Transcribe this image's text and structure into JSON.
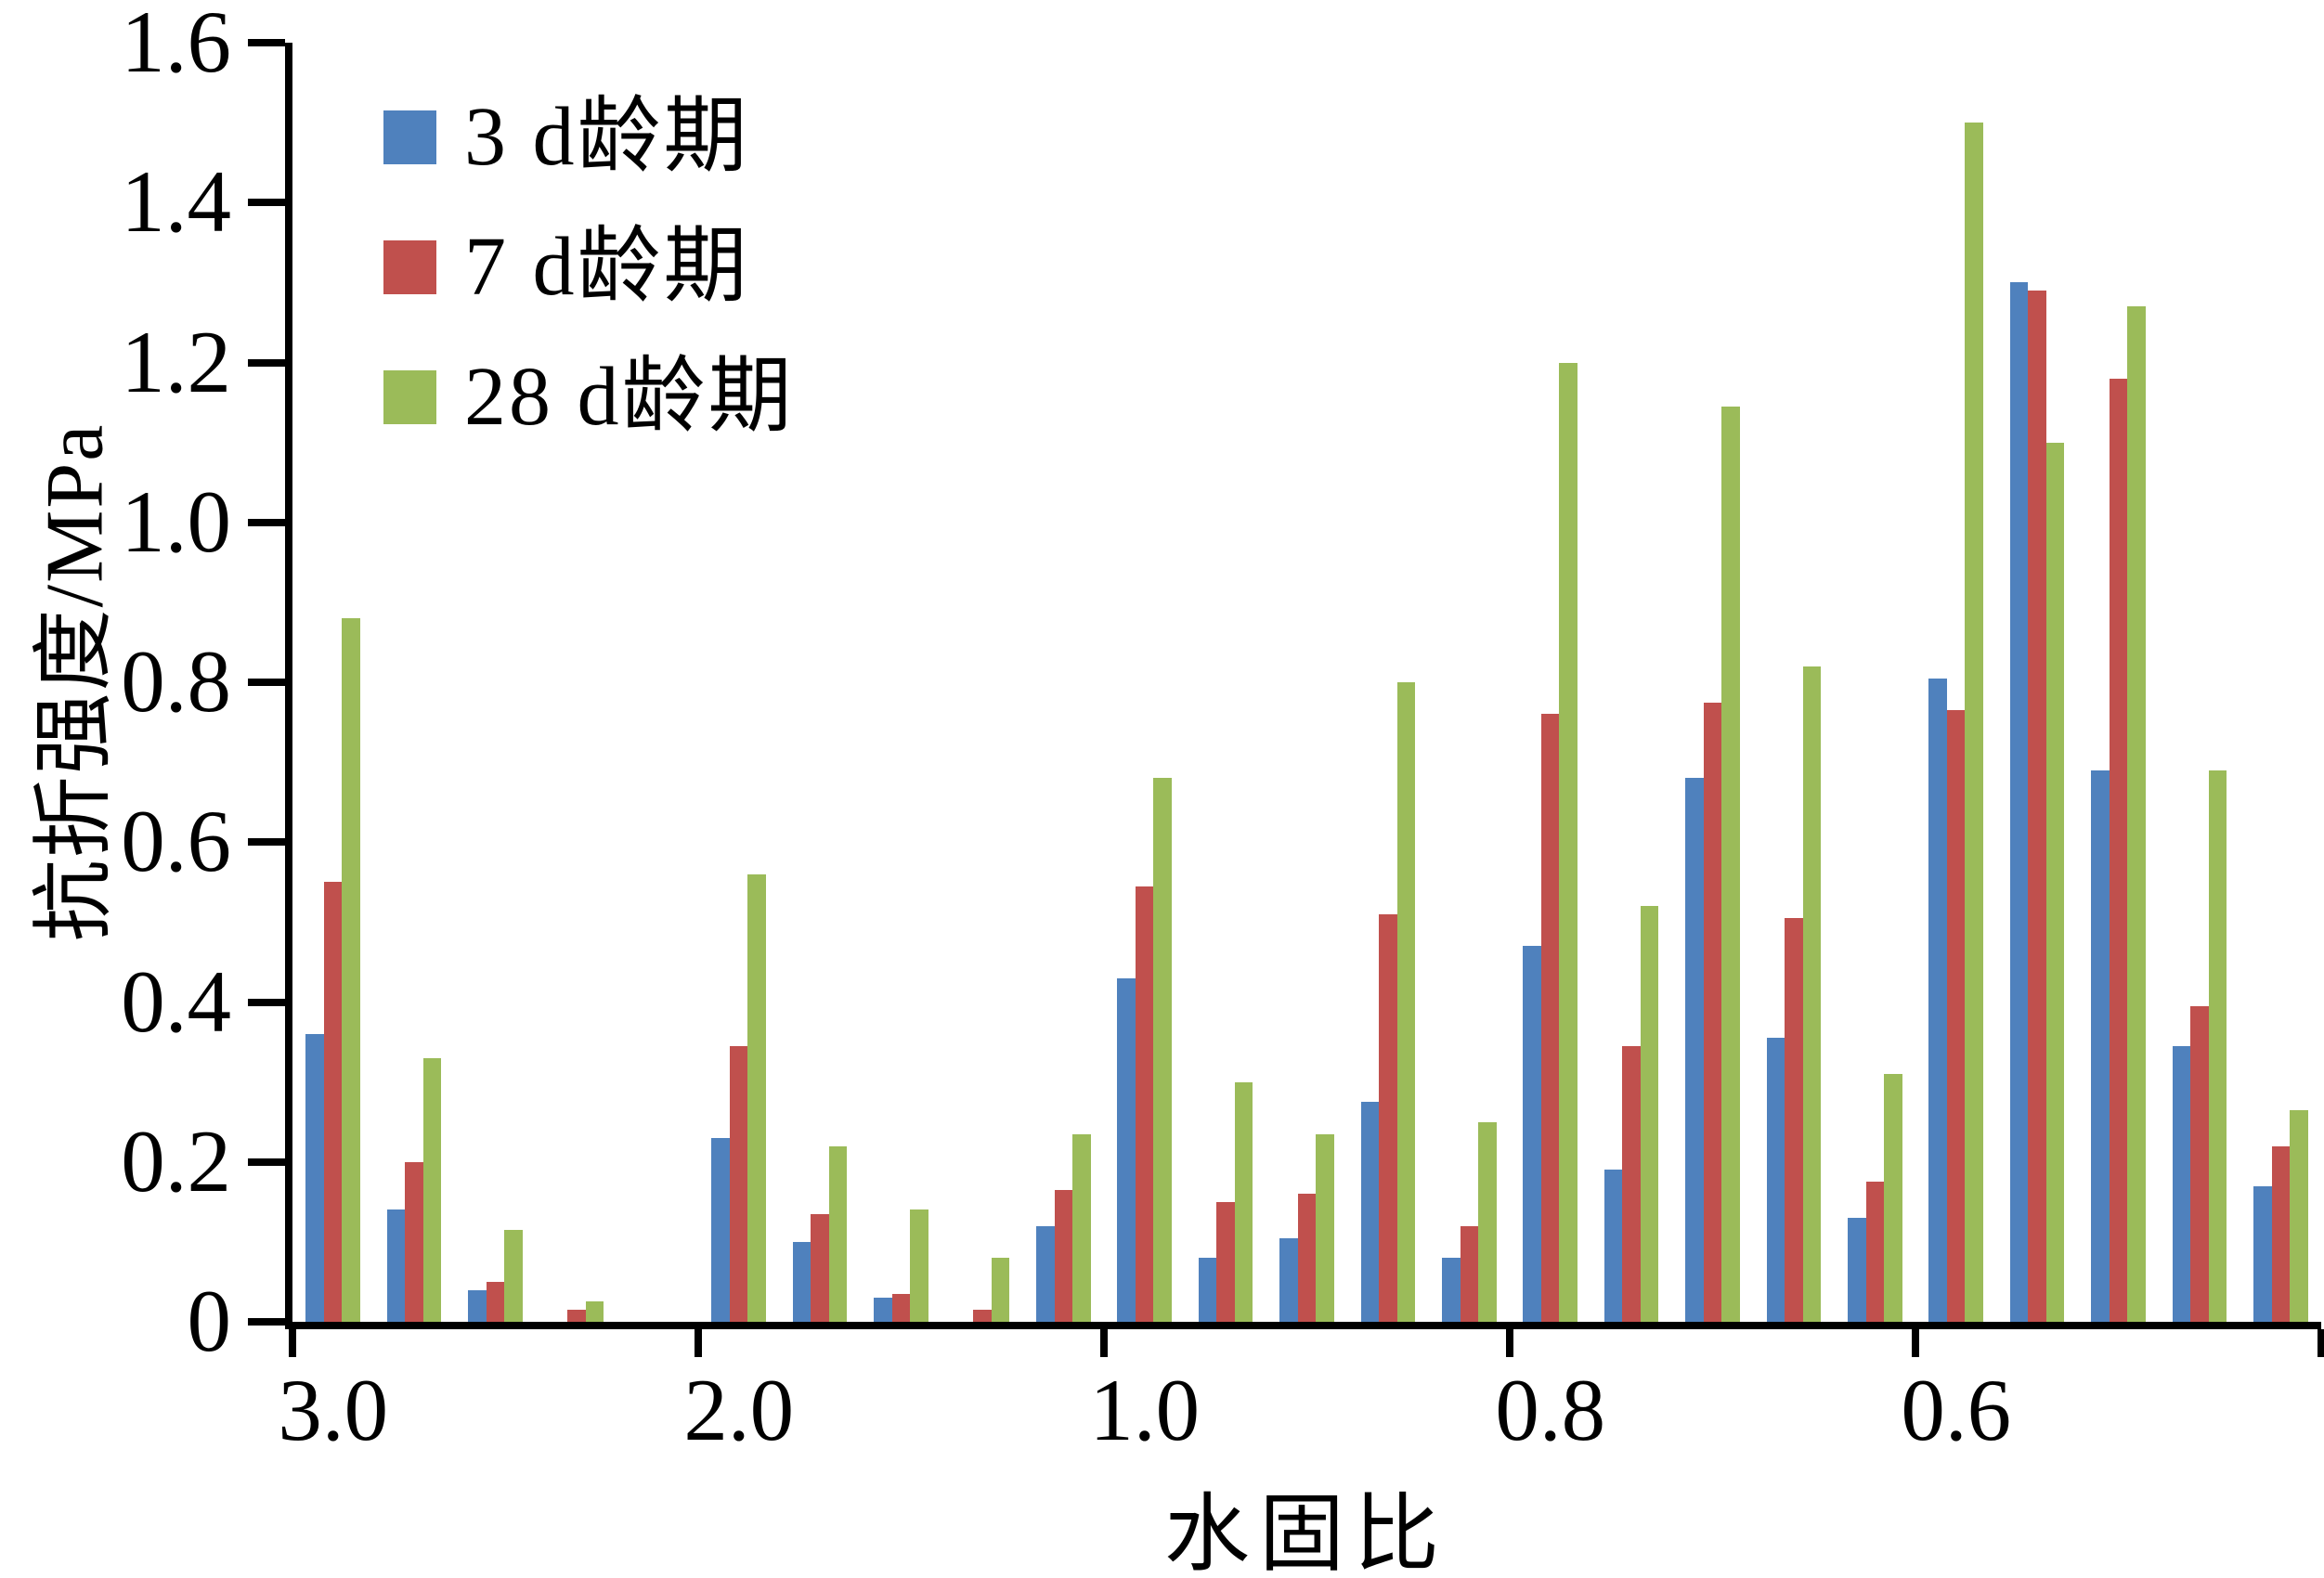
{
  "chart_data": {
    "type": "bar",
    "title": "",
    "ylabel": "抗折强度/MPa",
    "xlabel": "水固比",
    "ylim": [
      0,
      1.6
    ],
    "grid": false,
    "legend_position": "upper-left-inside",
    "yticks": [
      {
        "value": 0.0,
        "label": "0"
      },
      {
        "value": 0.2,
        "label": "0.2"
      },
      {
        "value": 0.4,
        "label": "0.4"
      },
      {
        "value": 0.6,
        "label": "0.6"
      },
      {
        "value": 0.8,
        "label": "0.8"
      },
      {
        "value": 1.0,
        "label": "1.0"
      },
      {
        "value": 1.2,
        "label": "1.2"
      },
      {
        "value": 1.4,
        "label": "1.4"
      },
      {
        "value": 1.6,
        "label": "1.6"
      }
    ],
    "n_slots": 25,
    "xtick_labels": [
      {
        "label": "3.0",
        "slot": 0
      },
      {
        "label": "2.0",
        "slot": 5
      },
      {
        "label": "1.0",
        "slot": 10
      },
      {
        "label": "0.8",
        "slot": 15
      },
      {
        "label": "0.6",
        "slot": 20
      }
    ],
    "series": [
      {
        "name": "3 d龄期",
        "color": "#4f81bd",
        "values": [
          0.36,
          0.14,
          0.04,
          0,
          0,
          0.23,
          0.1,
          0.03,
          0,
          0.12,
          0.43,
          0.08,
          0.105,
          0.275,
          0.08,
          0.47,
          0.19,
          0.68,
          0.355,
          0.13,
          0.805,
          1.3,
          0.69,
          0.345,
          0.17
        ]
      },
      {
        "name": "7 d龄期",
        "color": "#c0504d",
        "values": [
          0.55,
          0.2,
          0.05,
          0.015,
          0,
          0.345,
          0.135,
          0.035,
          0.015,
          0.165,
          0.545,
          0.15,
          0.16,
          0.51,
          0.12,
          0.76,
          0.345,
          0.775,
          0.505,
          0.175,
          0.765,
          1.29,
          1.18,
          0.395,
          0.22
        ]
      },
      {
        "name": "28 d龄期",
        "color": "#9bbb59",
        "values": [
          0.88,
          0.33,
          0.115,
          0.025,
          0,
          0.56,
          0.22,
          0.14,
          0.08,
          0.235,
          0.68,
          0.3,
          0.235,
          0.8,
          0.25,
          1.2,
          0.52,
          1.145,
          0.82,
          0.31,
          1.5,
          1.1,
          1.27,
          0.69,
          0.265
        ]
      }
    ]
  }
}
